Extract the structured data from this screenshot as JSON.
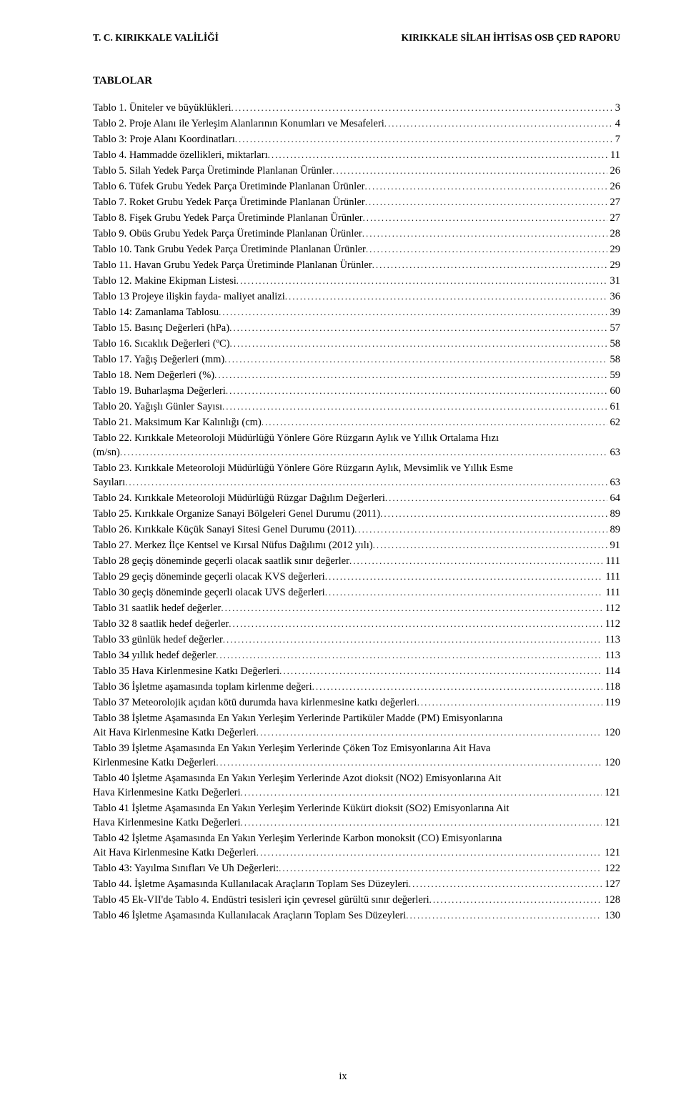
{
  "header": {
    "left": "T. C. KIRIKKALE VALİLİĞİ",
    "right": "KIRIKKALE SİLAH İHTİSAS OSB ÇED RAPORU"
  },
  "title": "TABLOLAR",
  "toc": [
    {
      "label": "Tablo 1. Üniteler ve büyüklükleri",
      "page": "3"
    },
    {
      "label": "Tablo 2. Proje Alanı ile Yerleşim Alanlarının Konumları ve Mesafeleri",
      "page": "4"
    },
    {
      "label": "Tablo 3: Proje Alanı Koordinatları",
      "page": "7"
    },
    {
      "label": "Tablo 4. Hammadde özellikleri, miktarları",
      "page": "11"
    },
    {
      "label": "Tablo 5. Silah Yedek Parça Üretiminde Planlanan Ürünler",
      "page": "26"
    },
    {
      "label": "Tablo 6. Tüfek Grubu  Yedek Parça Üretiminde Planlanan Ürünler",
      "page": "26"
    },
    {
      "label": "Tablo 7. Roket  Grubu  Yedek Parça Üretiminde Planlanan Ürünler",
      "page": "27"
    },
    {
      "label": "Tablo 8. Fişek Grubu  Yedek Parça Üretiminde Planlanan Ürünler",
      "page": "27"
    },
    {
      "label": "Tablo 9. Obüs Grubu  Yedek Parça Üretiminde Planlanan Ürünler",
      "page": "28"
    },
    {
      "label": "Tablo 10. Tank Grubu  Yedek Parça Üretiminde Planlanan Ürünler",
      "page": "29"
    },
    {
      "label": "Tablo 11. Havan Grubu  Yedek Parça Üretiminde Planlanan Ürünler",
      "page": "29"
    },
    {
      "label": "Tablo 12. Makine Ekipman Listesi",
      "page": "31"
    },
    {
      "label": "Tablo 13 Projeye ilişkin fayda- maliyet analizi",
      "page": "36"
    },
    {
      "label": "Tablo 14: Zamanlama Tablosu",
      "page": "39"
    },
    {
      "label": "Tablo 15. Basınç Değerleri (hPa)",
      "page": "57"
    },
    {
      "label": "Tablo 16. Sıcaklık Değerleri (ºC)",
      "page": "58"
    },
    {
      "label": "Tablo 17. Yağış Değerleri (mm)",
      "page": "58"
    },
    {
      "label": "Tablo 18. Nem Değerleri (%)",
      "page": "59"
    },
    {
      "label": "Tablo 19. Buharlaşma Değerleri",
      "page": "60"
    },
    {
      "label": "Tablo 20. Yağışlı Günler Sayısı",
      "page": "61"
    },
    {
      "label": "Tablo 21. Maksimum Kar Kalınlığı (cm)",
      "page": "62"
    },
    {
      "wrap": true,
      "first": "Tablo 22. Kırıkkale Meteoroloji Müdürlüğü Yönlere Göre Rüzgarın Aylık ve Yıllık Ortalama Hızı",
      "last": "(m/sn)",
      "page": "63"
    },
    {
      "wrap": true,
      "first": "Tablo 23. Kırıkkale Meteoroloji Müdürlüğü Yönlere Göre Rüzgarın Aylık, Mevsimlik ve Yıllık Esme",
      "last": "Sayıları",
      "page": "63"
    },
    {
      "label": "Tablo 24. Kırıkkale Meteoroloji Müdürlüğü Rüzgar Dağılım Değerleri",
      "page": "64"
    },
    {
      "label": "Tablo 25. Kırıkkale Organize Sanayi Bölgeleri Genel Durumu (2011)",
      "page": "89"
    },
    {
      "label": "Tablo 26.  Kırıkkale Küçük Sanayi Sitesi Genel Durumu (2011)",
      "page": "89"
    },
    {
      "label": "Tablo 27. Merkez İlçe Kentsel ve Kırsal Nüfus Dağılımı (2012 yılı)",
      "page": "91"
    },
    {
      "label": "Tablo 28 geçiş döneminde geçerli olacak saatlik sınır değerler",
      "page": "111"
    },
    {
      "label": "Tablo 29 geçiş döneminde geçerli olacak KVS değerleri",
      "page": "111"
    },
    {
      "label": "Tablo 30 geçiş döneminde geçerli olacak UVS değerleri",
      "page": "111"
    },
    {
      "label": "Tablo 31 saatlik hedef değerler",
      "page": "112"
    },
    {
      "label": "Tablo 32   8 saatlik hedef değerler",
      "page": "112"
    },
    {
      "label": "Tablo 33  günlük  hedef değerler",
      "page": "113"
    },
    {
      "label": "Tablo 34  yıllık  hedef değerler",
      "page": "113"
    },
    {
      "label": "Tablo 35   Hava Kirlenmesine Katkı Değerleri",
      "page": "114"
    },
    {
      "label": "Tablo 36 İşletme aşamasında toplam kirlenme değeri",
      "page": "118"
    },
    {
      "label": "Tablo 37  Meteorolojik açıdan kötü durumda hava kirlenmesine katkı değerleri",
      "page": "119"
    },
    {
      "wrap": true,
      "first": "Tablo 38  İşletme Aşamasında En Yakın Yerleşim Yerlerinde Partiküler Madde (PM) Emisyonlarına",
      "last": "Ait Hava Kirlenmesine Katkı Değerleri",
      "page": "120"
    },
    {
      "wrap": true,
      "first": "Tablo 39  İşletme Aşamasında En Yakın Yerleşim Yerlerinde Çöken Toz Emisyonlarına Ait Hava",
      "last": "Kirlenmesine Katkı Değerleri",
      "page": "120"
    },
    {
      "wrap": true,
      "first": "Tablo 40  İşletme Aşamasında En Yakın Yerleşim Yerlerinde Azot dioksit (NO2) Emisyonlarına Ait",
      "last": "Hava Kirlenmesine Katkı Değerleri",
      "page": "121"
    },
    {
      "wrap": true,
      "first": "Tablo 41  İşletme Aşamasında En Yakın Yerleşim Yerlerinde Kükürt dioksit (SO2) Emisyonlarına Ait",
      "last": "Hava Kirlenmesine Katkı Değerleri",
      "page": "121"
    },
    {
      "wrap": true,
      "first": "Tablo 42  İşletme Aşamasında En Yakın Yerleşim Yerlerinde Karbon monoksit (CO) Emisyonlarına",
      "last": "Ait Hava Kirlenmesine Katkı Değerleri",
      "page": "121"
    },
    {
      "label": "Tablo 43: Yayılma Sınıfları Ve Uh Değerleri:",
      "page": "122"
    },
    {
      "label": "Tablo 44. İşletme Aşamasında Kullanılacak Araçların Toplam Ses Düzeyleri",
      "page": "127"
    },
    {
      "label": "Tablo 45 Ek-VII'de Tablo 4.  Endüstri tesisleri için çevresel gürültü sınır değerleri",
      "page": "128"
    },
    {
      "label": "Tablo 46  İşletme Aşamasında Kullanılacak Araçların Toplam Ses Düzeyleri",
      "page": "130"
    }
  ],
  "page_number": "ix"
}
